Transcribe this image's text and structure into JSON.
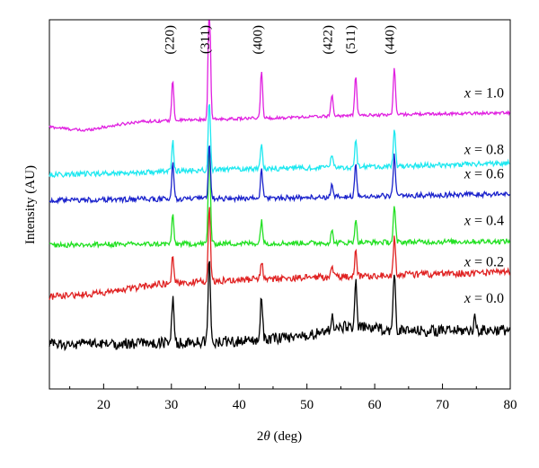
{
  "chart_data": {
    "type": "line",
    "title": "",
    "xlabel_prefix": "2",
    "xlabel_symbol": "θ",
    "xlabel_suffix": " (deg)",
    "ylabel": "Intensity (AU)",
    "xlim": [
      12,
      80
    ],
    "x_ticks": [
      20,
      30,
      40,
      50,
      60,
      70,
      80
    ],
    "y_ticks_shown": false,
    "grid": false,
    "peak_positions": [
      30.2,
      35.6,
      43.3,
      53.7,
      57.2,
      62.9
    ],
    "peak_labels": [
      {
        "text": "(220)",
        "x": 29.7
      },
      {
        "text": "(311)",
        "x": 34.9
      },
      {
        "text": "(400)",
        "x": 42.7
      },
      {
        "text": "(422)",
        "x": 53.0
      },
      {
        "text": "(511)",
        "x": 56.4
      },
      {
        "text": "(440)",
        "x": 62.2
      }
    ],
    "series": [
      {
        "label_var": "x",
        "label_value": "= 1.0",
        "color": "#e020e0",
        "baseline": [
          [
            12,
            3.55
          ],
          [
            17,
            3.5
          ],
          [
            25,
            3.62
          ],
          [
            35,
            3.65
          ],
          [
            45,
            3.67
          ],
          [
            55,
            3.7
          ],
          [
            65,
            3.72
          ],
          [
            80,
            3.74
          ]
        ],
        "noise": 0.02,
        "peaks": [
          [
            30.2,
            0.55
          ],
          [
            35.6,
            1.9
          ],
          [
            43.3,
            0.65
          ],
          [
            53.7,
            0.3
          ],
          [
            57.2,
            0.55
          ],
          [
            62.9,
            0.65
          ]
        ]
      },
      {
        "label_var": "x",
        "label_value": "= 0.8",
        "color": "#1ee8f0",
        "baseline": [
          [
            12,
            2.9
          ],
          [
            25,
            2.93
          ],
          [
            40,
            2.98
          ],
          [
            55,
            3.0
          ],
          [
            65,
            3.02
          ],
          [
            80,
            3.06
          ]
        ],
        "noise": 0.035,
        "peaks": [
          [
            30.2,
            0.42
          ],
          [
            35.6,
            0.95
          ],
          [
            43.3,
            0.35
          ],
          [
            53.7,
            0.2
          ],
          [
            57.2,
            0.38
          ],
          [
            62.9,
            0.5
          ]
        ]
      },
      {
        "label_var": "x",
        "label_value": "= 0.6",
        "color": "#1a22cc",
        "baseline": [
          [
            12,
            2.55
          ],
          [
            25,
            2.57
          ],
          [
            40,
            2.58
          ],
          [
            55,
            2.6
          ],
          [
            65,
            2.62
          ],
          [
            80,
            2.64
          ]
        ],
        "noise": 0.035,
        "peaks": [
          [
            30.2,
            0.48
          ],
          [
            35.6,
            0.75
          ],
          [
            43.3,
            0.4
          ],
          [
            53.7,
            0.16
          ],
          [
            57.2,
            0.45
          ],
          [
            62.9,
            0.55
          ]
        ]
      },
      {
        "label_var": "x",
        "label_value": "= 0.4",
        "color": "#22e022",
        "baseline": [
          [
            12,
            1.95
          ],
          [
            25,
            1.96
          ],
          [
            40,
            1.97
          ],
          [
            55,
            1.98
          ],
          [
            65,
            1.99
          ],
          [
            80,
            2.0
          ]
        ],
        "noise": 0.035,
        "peaks": [
          [
            30.2,
            0.38
          ],
          [
            35.6,
            1.35
          ],
          [
            43.3,
            0.32
          ],
          [
            53.7,
            0.16
          ],
          [
            57.2,
            0.32
          ],
          [
            62.9,
            0.48
          ]
        ]
      },
      {
        "label_var": "x",
        "label_value": "= 0.2",
        "color": "#e02222",
        "baseline": [
          [
            12,
            1.25
          ],
          [
            20,
            1.3
          ],
          [
            28,
            1.42
          ],
          [
            40,
            1.48
          ],
          [
            55,
            1.52
          ],
          [
            65,
            1.55
          ],
          [
            80,
            1.58
          ]
        ],
        "noise": 0.045,
        "peaks": [
          [
            30.2,
            0.4
          ],
          [
            35.6,
            1.05
          ],
          [
            43.3,
            0.25
          ],
          [
            53.7,
            0.15
          ],
          [
            57.2,
            0.35
          ],
          [
            62.9,
            0.5
          ]
        ]
      },
      {
        "label_var": "x",
        "label_value": "= 0.0",
        "color": "#000000",
        "baseline": [
          [
            12,
            0.6
          ],
          [
            28,
            0.62
          ],
          [
            40,
            0.65
          ],
          [
            50,
            0.72
          ],
          [
            56,
            0.85
          ],
          [
            65,
            0.78
          ],
          [
            80,
            0.8
          ]
        ],
        "noise": 0.075,
        "peaks": [
          [
            30.2,
            0.6
          ],
          [
            35.6,
            1.15
          ],
          [
            43.3,
            0.6
          ],
          [
            53.7,
            0.2
          ],
          [
            57.2,
            0.6
          ],
          [
            62.9,
            0.8
          ],
          [
            74.8,
            0.18
          ]
        ]
      }
    ],
    "series_label_positions_y": [
      3.95,
      3.18,
      2.85,
      2.22,
      1.66,
      1.17
    ]
  }
}
